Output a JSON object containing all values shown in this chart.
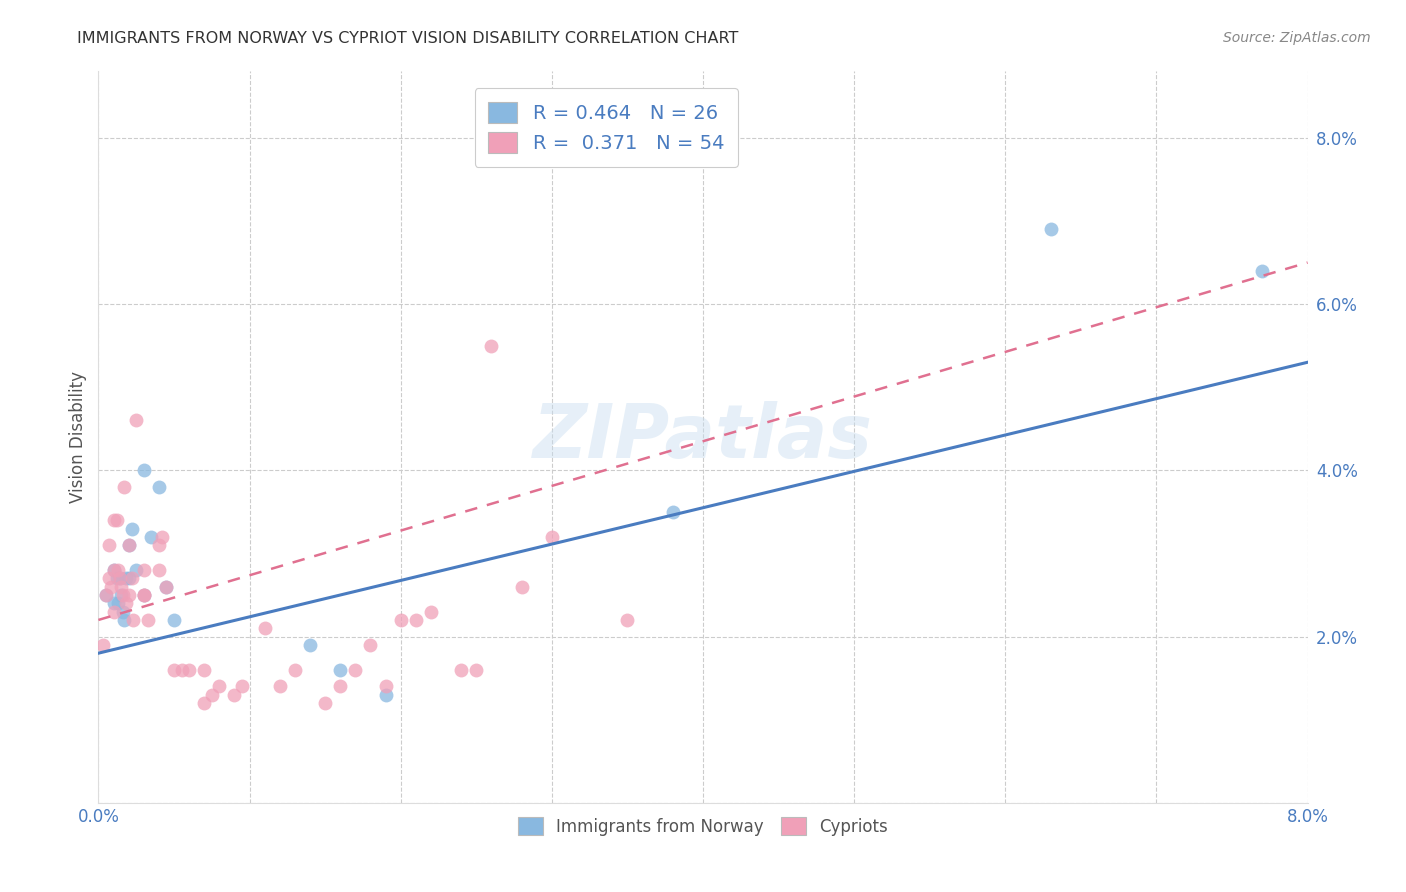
{
  "title": "IMMIGRANTS FROM NORWAY VS CYPRIOT VISION DISABILITY CORRELATION CHART",
  "source": "Source: ZipAtlas.com",
  "ylabel": "Vision Disability",
  "xlim": [
    0.0,
    0.08
  ],
  "ylim": [
    0.0,
    0.088
  ],
  "yticks": [
    0.0,
    0.02,
    0.04,
    0.06,
    0.08
  ],
  "xticks": [
    0.0,
    0.01,
    0.02,
    0.03,
    0.04,
    0.05,
    0.06,
    0.07,
    0.08
  ],
  "xtick_labels": [
    "0.0%",
    "",
    "",
    "",
    "",
    "",
    "",
    "",
    "8.0%"
  ],
  "ytick_labels": [
    "",
    "2.0%",
    "4.0%",
    "6.0%",
    "8.0%"
  ],
  "blue_R": 0.464,
  "blue_N": 26,
  "pink_R": 0.371,
  "pink_N": 54,
  "blue_color": "#89b8e0",
  "pink_color": "#f0a0b8",
  "blue_line_color": "#4a7cc0",
  "pink_line_color": "#e07090",
  "watermark": "ZIPatlas",
  "blue_points_x": [
    0.0005,
    0.001,
    0.001,
    0.0012,
    0.0013,
    0.0014,
    0.0015,
    0.0016,
    0.0017,
    0.0018,
    0.002,
    0.002,
    0.0022,
    0.0025,
    0.003,
    0.003,
    0.0035,
    0.004,
    0.0045,
    0.005,
    0.014,
    0.016,
    0.019,
    0.038,
    0.063,
    0.077
  ],
  "blue_points_y": [
    0.025,
    0.028,
    0.024,
    0.027,
    0.024,
    0.027,
    0.025,
    0.023,
    0.022,
    0.027,
    0.027,
    0.031,
    0.033,
    0.028,
    0.025,
    0.04,
    0.032,
    0.038,
    0.026,
    0.022,
    0.019,
    0.016,
    0.013,
    0.035,
    0.069,
    0.064
  ],
  "pink_points_x": [
    0.0003,
    0.0005,
    0.0007,
    0.0007,
    0.0008,
    0.001,
    0.001,
    0.001,
    0.0012,
    0.0013,
    0.0014,
    0.0015,
    0.0016,
    0.0017,
    0.0018,
    0.002,
    0.002,
    0.0022,
    0.0023,
    0.0025,
    0.003,
    0.003,
    0.003,
    0.0033,
    0.004,
    0.004,
    0.0042,
    0.0045,
    0.005,
    0.0055,
    0.006,
    0.007,
    0.007,
    0.0075,
    0.008,
    0.009,
    0.0095,
    0.011,
    0.012,
    0.013,
    0.015,
    0.016,
    0.017,
    0.018,
    0.019,
    0.02,
    0.021,
    0.022,
    0.024,
    0.025,
    0.026,
    0.028,
    0.03,
    0.035
  ],
  "pink_points_y": [
    0.019,
    0.025,
    0.031,
    0.027,
    0.026,
    0.023,
    0.028,
    0.034,
    0.034,
    0.028,
    0.027,
    0.026,
    0.025,
    0.038,
    0.024,
    0.025,
    0.031,
    0.027,
    0.022,
    0.046,
    0.028,
    0.025,
    0.025,
    0.022,
    0.028,
    0.031,
    0.032,
    0.026,
    0.016,
    0.016,
    0.016,
    0.016,
    0.012,
    0.013,
    0.014,
    0.013,
    0.014,
    0.021,
    0.014,
    0.016,
    0.012,
    0.014,
    0.016,
    0.019,
    0.014,
    0.022,
    0.022,
    0.023,
    0.016,
    0.016,
    0.055,
    0.026,
    0.032,
    0.022
  ]
}
